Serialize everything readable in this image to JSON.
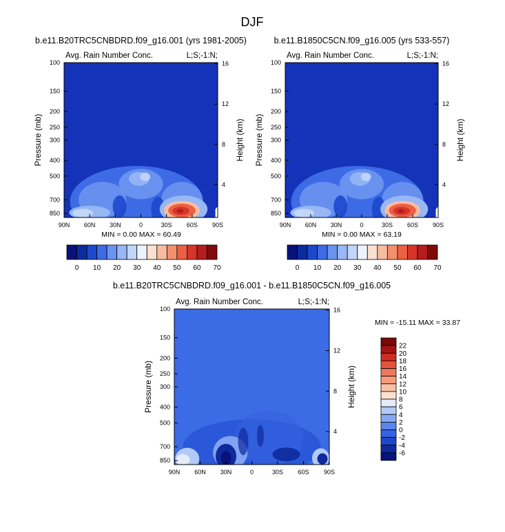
{
  "page_title": "DJF",
  "colors": {
    "field_bg": "#1433B8",
    "diff_bg": "#3C6BE6",
    "main_scale": [
      "#08127A",
      "#0B2BA0",
      "#1C48CC",
      "#3D6BE6",
      "#6B93F0",
      "#97B7F5",
      "#C2D6FA",
      "#EEF2FA",
      "#FCE0D0",
      "#F9BCA0",
      "#F4906E",
      "#EC6043",
      "#D7352A",
      "#B51C1C",
      "#7E0A0A"
    ],
    "diff_scale": [
      "#08127A",
      "#0E2A9C",
      "#1C48CC",
      "#3563E0",
      "#5A85EC",
      "#86A8F2",
      "#B2CAF7",
      "#E4ECF9",
      "#FCE0D0",
      "#FAC0A4",
      "#F69C7C",
      "#F0785A",
      "#E4543C",
      "#CC2F22",
      "#A51414",
      "#7A0808"
    ]
  },
  "chart_data": [
    {
      "type": "heatmap",
      "title": "b.e11.B20TRC5CNBDRD.f09_g16.001 (yrs 1981-2005)",
      "subtitle_left": "Avg. Rain Number Conc.",
      "subtitle_right": "L;S;-1:N;",
      "ylabel": "Pressure (mb)",
      "ylabel_right": "Height (km)",
      "x_ticks": [
        "90N",
        "60N",
        "30N",
        "0",
        "30S",
        "60S",
        "90S"
      ],
      "x_values": [
        90,
        60,
        30,
        0,
        -30,
        -60,
        -90
      ],
      "y_ticks": [
        "100",
        "150",
        "200",
        "250",
        "300",
        "400",
        "500",
        "700",
        "850"
      ],
      "y_values": [
        100,
        150,
        200,
        250,
        300,
        400,
        500,
        700,
        850
      ],
      "ylim": [
        100,
        900
      ],
      "height_ticks": [
        "16",
        "12",
        "8",
        "4"
      ],
      "height_values": [
        16,
        12,
        8,
        4
      ],
      "stats": "MIN =  0.00  MAX = 60.49",
      "min": 0.0,
      "max": 60.49,
      "colorbar_labels": [
        "0",
        "10",
        "20",
        "30",
        "40",
        "50",
        "60",
        "70"
      ],
      "colorbar_levels": [
        0,
        10,
        20,
        30,
        40,
        50,
        60,
        70
      ]
    },
    {
      "type": "heatmap",
      "title": "b.e11.B1850C5CN.f09_g16.005 (yrs 533-557)",
      "subtitle_left": "Avg. Rain Number Conc.",
      "subtitle_right": "L;S;-1:N;",
      "ylabel": "Pressure (mb)",
      "ylabel_right": "Height (km)",
      "x_ticks": [
        "90N",
        "60N",
        "30N",
        "0",
        "30S",
        "60S",
        "90S"
      ],
      "x_values": [
        90,
        60,
        30,
        0,
        -30,
        -60,
        -90
      ],
      "y_ticks": [
        "100",
        "150",
        "200",
        "250",
        "300",
        "400",
        "500",
        "700",
        "850"
      ],
      "y_values": [
        100,
        150,
        200,
        250,
        300,
        400,
        500,
        700,
        850
      ],
      "ylim": [
        100,
        900
      ],
      "height_ticks": [
        "16",
        "12",
        "8",
        "4"
      ],
      "height_values": [
        16,
        12,
        8,
        4
      ],
      "stats": "MIN =  0.00  MAX = 63.19",
      "min": 0.0,
      "max": 63.19,
      "colorbar_labels": [
        "0",
        "10",
        "20",
        "30",
        "40",
        "50",
        "60",
        "70"
      ],
      "colorbar_levels": [
        0,
        10,
        20,
        30,
        40,
        50,
        60,
        70
      ]
    },
    {
      "type": "heatmap",
      "title": "b.e11.B20TRC5CNBDRD.f09_g16.001 - b.e11.B1850C5CN.f09_g16.005",
      "subtitle_left": "Avg. Rain Number Conc.",
      "subtitle_right": "L;S;-1:N;",
      "ylabel": "Pressure (mb)",
      "ylabel_right": "Height (km)",
      "x_ticks": [
        "90N",
        "60N",
        "30N",
        "0",
        "30S",
        "60S",
        "90S"
      ],
      "x_values": [
        90,
        60,
        30,
        0,
        -30,
        -60,
        -90
      ],
      "y_ticks": [
        "100",
        "150",
        "200",
        "250",
        "300",
        "400",
        "500",
        "700",
        "850"
      ],
      "y_values": [
        100,
        150,
        200,
        250,
        300,
        400,
        500,
        700,
        850
      ],
      "ylim": [
        100,
        900
      ],
      "height_ticks": [
        "16",
        "12",
        "8",
        "4"
      ],
      "height_values": [
        16,
        12,
        8,
        4
      ],
      "stats": "MIN = -15.11  MAX = 33.87",
      "min": -15.11,
      "max": 33.87,
      "colorbar_labels": [
        "22",
        "20",
        "18",
        "16",
        "14",
        "12",
        "10",
        "8",
        "6",
        "4",
        "2",
        "0",
        "-2",
        "-4",
        "-6"
      ],
      "colorbar_levels": [
        22,
        20,
        18,
        16,
        14,
        12,
        10,
        8,
        6,
        4,
        2,
        0,
        -2,
        -4,
        -6
      ]
    }
  ]
}
